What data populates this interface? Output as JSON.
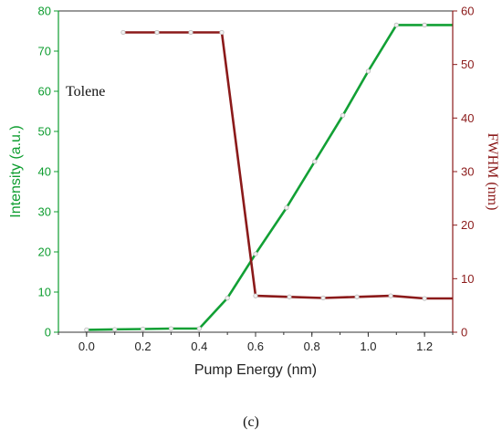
{
  "chart_data": {
    "type": "line",
    "xlabel": "Pump Energy (nm)",
    "ylabel_left": "Intensity (a.u.)",
    "ylabel_right": "FWHM (nm)",
    "xlim": [
      -0.1,
      1.3
    ],
    "ylim_left": [
      0,
      80
    ],
    "ylim_right": [
      0,
      60
    ],
    "x_ticks": [
      0.0,
      0.2,
      0.4,
      0.6,
      0.8,
      1.0,
      1.2
    ],
    "x_tick_labels": [
      "0.0",
      "0.2",
      "0.4",
      "0.6",
      "0.8",
      "1.0",
      "1.2"
    ],
    "y_left_ticks": [
      0,
      10,
      20,
      30,
      40,
      50,
      60,
      70,
      80
    ],
    "y_right_ticks": [
      0,
      10,
      20,
      30,
      40,
      50,
      60
    ],
    "annotation": "Tolene",
    "caption": "(c)",
    "series": [
      {
        "name": "Intensity",
        "axis": "left",
        "color": "#12a035",
        "points": [
          [
            0.0,
            0.6
          ],
          [
            0.1,
            0.7
          ],
          [
            0.2,
            0.8
          ],
          [
            0.3,
            0.9
          ],
          [
            0.4,
            0.9
          ],
          [
            0.5,
            8.5
          ],
          [
            0.6,
            19.5
          ],
          [
            0.71,
            31.0
          ],
          [
            0.81,
            42.5
          ],
          [
            0.91,
            54.0
          ],
          [
            1.0,
            65.0
          ],
          [
            1.1,
            76.5
          ],
          [
            1.2,
            76.5
          ],
          [
            1.3,
            76.5
          ]
        ]
      },
      {
        "name": "FWHM",
        "axis": "right",
        "color": "#8b1a1a",
        "points": [
          [
            0.13,
            56.0
          ],
          [
            0.25,
            56.0
          ],
          [
            0.37,
            56.0
          ],
          [
            0.48,
            56.0
          ],
          [
            0.6,
            6.8
          ],
          [
            0.72,
            6.6
          ],
          [
            0.84,
            6.4
          ],
          [
            0.96,
            6.6
          ],
          [
            1.08,
            6.8
          ],
          [
            1.2,
            6.3
          ],
          [
            1.3,
            6.3
          ]
        ]
      }
    ]
  }
}
